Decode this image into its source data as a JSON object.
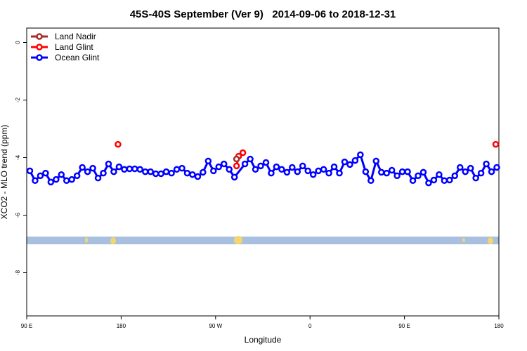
{
  "chart_data": {
    "type": "line",
    "title": "45S-40S September (Ver 9)   2014-09-06 to 2018-12-31",
    "x_label": "Longitude",
    "y_label": "XCO2 - MLO trend (ppm)",
    "xlim": [
      90,
      540
    ],
    "xticks": [
      {
        "value": 90,
        "label": "90 E"
      },
      180,
      {
        "value": 270,
        "label": "90 W"
      },
      {
        "value": 360,
        "label": "0"
      },
      {
        "value": 450,
        "label": "90 E"
      },
      {
        "value": 540,
        "label": "180"
      }
    ],
    "ylim": [
      -9.5,
      0.5
    ],
    "yticks": [
      0,
      -2,
      -4,
      -6,
      -8
    ],
    "legend": "top-left",
    "series": [
      {
        "name": "Land Nadir",
        "color": "#a52a2a",
        "x": [
          290
        ],
        "values": [
          -4.05
        ]
      },
      {
        "name": "Land Glint",
        "color": "#ff0000",
        "x": [
          177,
          null,
          290,
          292,
          296,
          null,
          537
        ],
        "values": [
          -3.54,
          null,
          -4.29,
          -3.95,
          -3.83,
          null,
          -3.54
        ]
      },
      {
        "name": "Ocean Glint",
        "color": "#0000ff",
        "x": [
          93,
          98,
          103,
          108,
          113,
          118,
          123,
          128,
          133,
          138,
          143,
          148,
          153,
          158,
          163,
          168,
          173,
          178,
          183,
          188,
          193,
          198,
          203,
          208,
          213,
          218,
          223,
          228,
          233,
          238,
          243,
          248,
          253,
          258,
          263,
          268,
          273,
          278,
          283,
          288,
          298,
          303,
          308,
          313,
          318,
          323,
          328,
          333,
          338,
          343,
          348,
          353,
          358,
          363,
          368,
          373,
          378,
          383,
          388,
          393,
          398,
          403,
          408,
          413,
          418,
          423,
          428,
          433,
          438,
          443,
          448,
          453,
          458,
          463,
          468,
          473,
          478,
          483,
          488,
          493,
          498,
          503,
          508,
          513,
          518,
          523,
          528,
          533,
          538
        ],
        "values": [
          -4.46,
          -4.8,
          -4.63,
          -4.54,
          -4.85,
          -4.76,
          -4.59,
          -4.8,
          -4.76,
          -4.63,
          -4.34,
          -4.49,
          -4.37,
          -4.71,
          -4.54,
          -4.22,
          -4.49,
          -4.32,
          -4.41,
          -4.39,
          -4.39,
          -4.41,
          -4.49,
          -4.49,
          -4.56,
          -4.56,
          -4.49,
          -4.54,
          -4.41,
          -4.37,
          -4.54,
          -4.59,
          -4.66,
          -4.51,
          -4.12,
          -4.46,
          -4.32,
          -4.22,
          -4.41,
          -4.68,
          -4.22,
          -4.05,
          -4.41,
          -4.29,
          -4.17,
          -4.54,
          -4.32,
          -4.41,
          -4.51,
          -4.34,
          -4.49,
          -4.29,
          -4.46,
          -4.59,
          -4.46,
          -4.41,
          -4.54,
          -4.32,
          -4.54,
          -4.15,
          -4.24,
          -4.1,
          -3.9,
          -4.49,
          -4.8,
          -4.12,
          -4.51,
          -4.54,
          -4.44,
          -4.63,
          -4.49,
          -4.49,
          -4.8,
          -4.63,
          -4.51,
          -4.88,
          -4.78,
          -4.59,
          -4.8,
          -4.78,
          -4.63,
          -4.34,
          -4.49,
          -4.37,
          -4.71,
          -4.54,
          -4.22,
          -4.49,
          -4.34
        ]
      }
    ]
  }
}
